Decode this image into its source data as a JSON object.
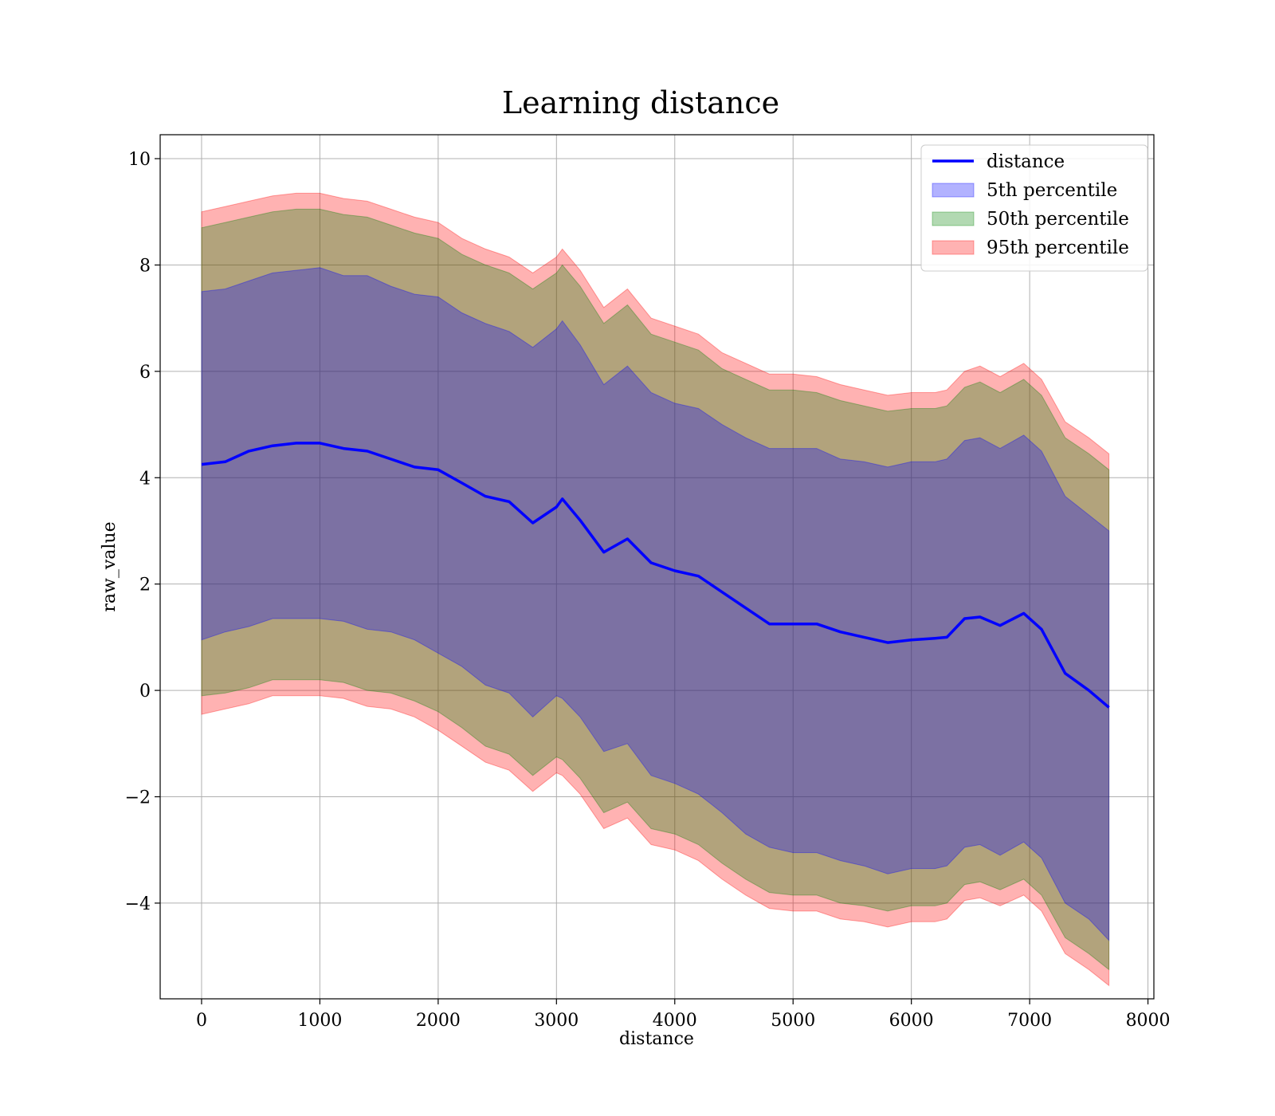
{
  "chart_data": {
    "type": "line",
    "title": "Learning distance",
    "xlabel": "distance",
    "ylabel": "raw_value",
    "xlim": [
      -350,
      8050
    ],
    "ylim": [
      -5.8,
      10.45
    ],
    "xticks": [
      0,
      1000,
      2000,
      3000,
      4000,
      5000,
      6000,
      7000,
      8000
    ],
    "xtick_labels": [
      "0",
      "1000",
      "2000",
      "3000",
      "4000",
      "5000",
      "6000",
      "7000",
      "8000"
    ],
    "yticks": [
      -4,
      -2,
      0,
      2,
      4,
      6,
      8,
      10
    ],
    "ytick_labels": [
      "−4",
      "−2",
      "0",
      "2",
      "4",
      "6",
      "8",
      "10"
    ],
    "grid": true,
    "legend_position": "top-right",
    "x": [
      0,
      200,
      400,
      600,
      800,
      1000,
      1200,
      1400,
      1600,
      1800,
      2000,
      2200,
      2400,
      2600,
      2800,
      3000,
      3050,
      3200,
      3400,
      3600,
      3800,
      4000,
      4200,
      4400,
      4600,
      4800,
      5000,
      5200,
      5400,
      5600,
      5800,
      6000,
      6200,
      6300,
      6450,
      6580,
      6750,
      6950,
      7100,
      7300,
      7500,
      7670
    ],
    "series": [
      {
        "name": "distance",
        "kind": "line",
        "color": "#0000ff",
        "values": [
          4.25,
          4.3,
          4.5,
          4.6,
          4.65,
          4.65,
          4.55,
          4.5,
          4.35,
          4.2,
          4.15,
          3.9,
          3.65,
          3.55,
          3.15,
          3.45,
          3.6,
          3.2,
          2.6,
          2.85,
          2.4,
          2.25,
          2.15,
          1.85,
          1.55,
          1.25,
          1.25,
          1.25,
          1.1,
          1.0,
          0.9,
          0.95,
          0.98,
          1.0,
          1.35,
          1.38,
          1.22,
          1.45,
          1.15,
          0.32,
          0.0,
          -0.32
        ]
      },
      {
        "name": "5th percentile",
        "kind": "band",
        "color": "#0000ff",
        "opacity": 0.3,
        "lower": [
          0.95,
          1.1,
          1.2,
          1.35,
          1.35,
          1.35,
          1.3,
          1.15,
          1.1,
          0.95,
          0.7,
          0.45,
          0.1,
          -0.05,
          -0.5,
          -0.1,
          -0.15,
          -0.5,
          -1.15,
          -1.0,
          -1.6,
          -1.75,
          -1.95,
          -2.3,
          -2.7,
          -2.95,
          -3.05,
          -3.05,
          -3.2,
          -3.3,
          -3.45,
          -3.35,
          -3.35,
          -3.3,
          -2.95,
          -2.9,
          -3.1,
          -2.85,
          -3.15,
          -4.0,
          -4.3,
          -4.7
        ],
        "upper": [
          7.5,
          7.55,
          7.7,
          7.85,
          7.9,
          7.95,
          7.8,
          7.8,
          7.6,
          7.45,
          7.4,
          7.1,
          6.9,
          6.75,
          6.45,
          6.8,
          6.95,
          6.5,
          5.75,
          6.1,
          5.6,
          5.4,
          5.3,
          5.0,
          4.75,
          4.55,
          4.55,
          4.55,
          4.35,
          4.3,
          4.2,
          4.3,
          4.3,
          4.35,
          4.7,
          4.75,
          4.55,
          4.8,
          4.5,
          3.65,
          3.3,
          3.0
        ]
      },
      {
        "name": "50th percentile",
        "kind": "band",
        "color": "#008000",
        "opacity": 0.3,
        "lower": [
          -0.1,
          -0.05,
          0.05,
          0.2,
          0.2,
          0.2,
          0.15,
          0.0,
          -0.05,
          -0.2,
          -0.4,
          -0.7,
          -1.05,
          -1.2,
          -1.6,
          -1.25,
          -1.3,
          -1.65,
          -2.3,
          -2.1,
          -2.6,
          -2.7,
          -2.9,
          -3.25,
          -3.55,
          -3.8,
          -3.85,
          -3.85,
          -4.0,
          -4.05,
          -4.15,
          -4.05,
          -4.05,
          -4.0,
          -3.65,
          -3.6,
          -3.75,
          -3.55,
          -3.85,
          -4.65,
          -4.95,
          -5.25
        ],
        "upper": [
          8.7,
          8.8,
          8.9,
          9.0,
          9.05,
          9.05,
          8.95,
          8.9,
          8.75,
          8.6,
          8.5,
          8.2,
          8.0,
          7.85,
          7.55,
          7.85,
          8.0,
          7.6,
          6.9,
          7.25,
          6.7,
          6.55,
          6.4,
          6.05,
          5.85,
          5.65,
          5.65,
          5.6,
          5.45,
          5.35,
          5.25,
          5.3,
          5.3,
          5.35,
          5.7,
          5.8,
          5.6,
          5.85,
          5.55,
          4.75,
          4.45,
          4.15
        ]
      },
      {
        "name": "95th percentile",
        "kind": "band",
        "color": "#ff0000",
        "opacity": 0.3,
        "lower": [
          -0.45,
          -0.35,
          -0.25,
          -0.1,
          -0.1,
          -0.1,
          -0.15,
          -0.3,
          -0.35,
          -0.5,
          -0.75,
          -1.05,
          -1.35,
          -1.5,
          -1.9,
          -1.55,
          -1.6,
          -1.95,
          -2.6,
          -2.4,
          -2.9,
          -3.0,
          -3.2,
          -3.55,
          -3.85,
          -4.1,
          -4.15,
          -4.15,
          -4.3,
          -4.35,
          -4.45,
          -4.35,
          -4.35,
          -4.3,
          -3.95,
          -3.9,
          -4.05,
          -3.85,
          -4.15,
          -4.95,
          -5.25,
          -5.55
        ],
        "upper": [
          9.0,
          9.1,
          9.2,
          9.3,
          9.35,
          9.35,
          9.25,
          9.2,
          9.05,
          8.9,
          8.8,
          8.5,
          8.3,
          8.15,
          7.85,
          8.15,
          8.3,
          7.9,
          7.2,
          7.55,
          7.0,
          6.85,
          6.7,
          6.35,
          6.15,
          5.95,
          5.95,
          5.9,
          5.75,
          5.65,
          5.55,
          5.6,
          5.6,
          5.65,
          6.0,
          6.1,
          5.9,
          6.15,
          5.85,
          5.05,
          4.75,
          4.45
        ]
      }
    ]
  }
}
